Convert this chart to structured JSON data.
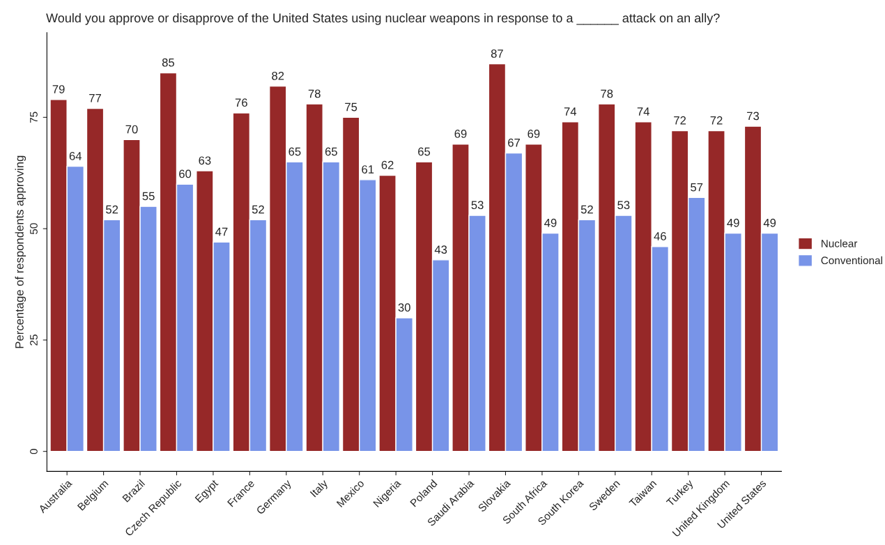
{
  "chart_data": {
    "type": "bar",
    "title": "Would you approve or disapprove of the United States using nuclear weapons in response to a ______ attack on an ally?",
    "ylabel": "Percentage of respondents approving",
    "categories": [
      "Australia",
      "Belgium",
      "Brazil",
      "Czech Republic",
      "Egypt",
      "France",
      "Germany",
      "Italy",
      "Mexico",
      "Nigeria",
      "Poland",
      "Saudi Arabia",
      "Slovakia",
      "South Africa",
      "South Korea",
      "Sweden",
      "Taiwan",
      "Turkey",
      "United Kingdom",
      "United States"
    ],
    "series": [
      {
        "name": "Nuclear",
        "color": "#962828",
        "values": [
          79,
          77,
          70,
          85,
          63,
          76,
          82,
          78,
          75,
          62,
          65,
          69,
          87,
          69,
          74,
          78,
          74,
          72,
          72,
          73
        ]
      },
      {
        "name": "Conventional",
        "color": "#7894e8",
        "values": [
          64,
          52,
          55,
          60,
          47,
          52,
          65,
          65,
          61,
          30,
          43,
          53,
          67,
          49,
          52,
          53,
          46,
          57,
          49,
          49
        ]
      }
    ],
    "ylim": [
      -4.5,
      94
    ],
    "yticks": [
      0,
      25,
      50,
      75
    ],
    "data_labels": true,
    "legend": "right",
    "grid": false
  }
}
